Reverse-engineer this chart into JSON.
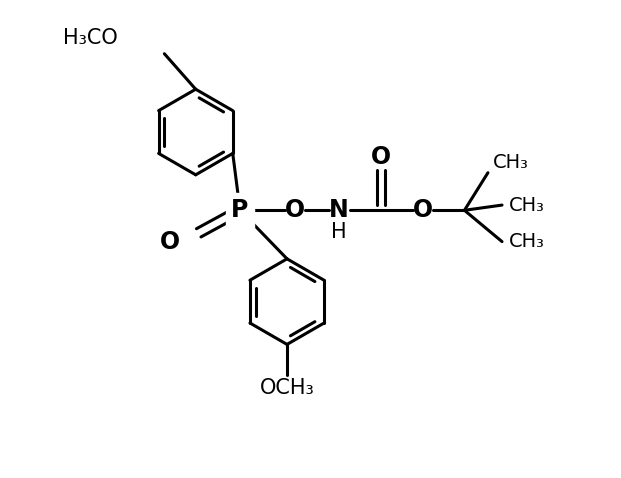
{
  "background_color": "#ffffff",
  "line_color": "#000000",
  "line_width": 2.2,
  "font_size": 14,
  "figsize": [
    6.21,
    4.78
  ],
  "dpi": 100,
  "xlim": [
    0,
    10
  ],
  "ylim": [
    0,
    9
  ]
}
